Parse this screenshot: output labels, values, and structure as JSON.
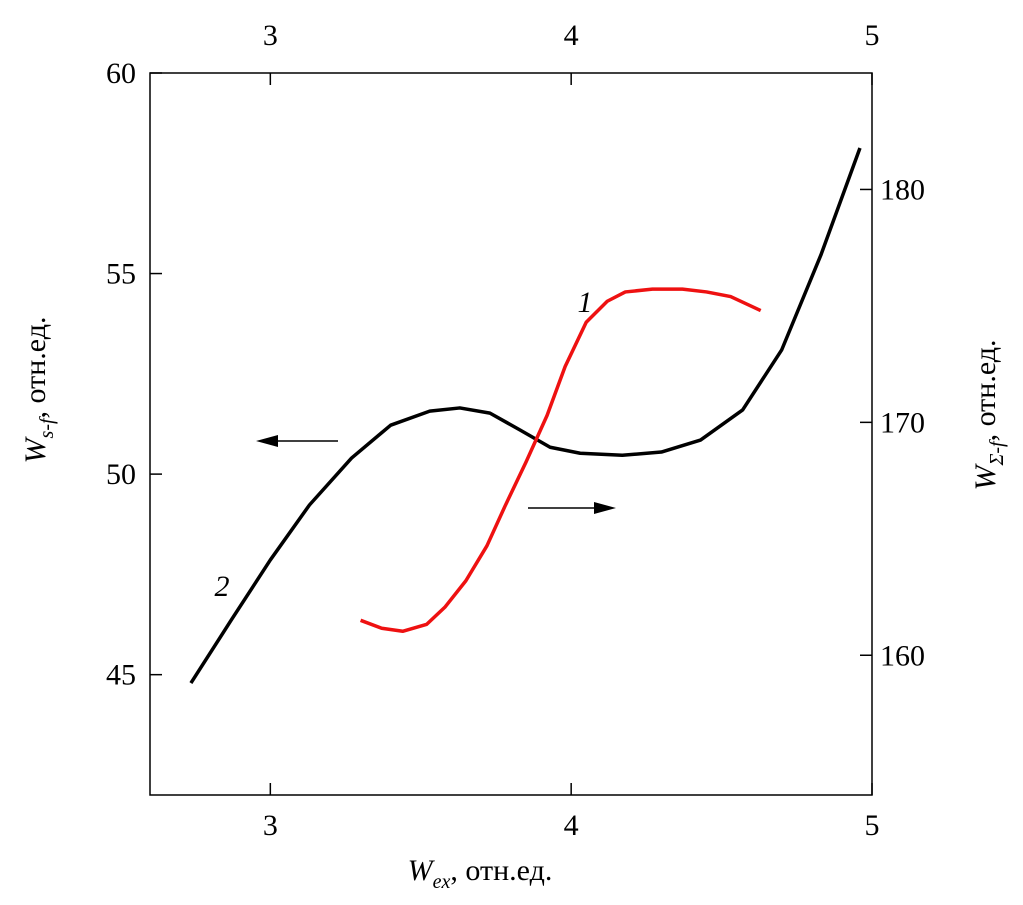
{
  "chart_data": {
    "type": "line",
    "x_label": {
      "main": "W",
      "sub": "ex",
      "rest": ", отн.ед."
    },
    "y_label": {
      "main": "W",
      "sub": "s-f",
      "rest": ", отн.ед."
    },
    "y2_label": {
      "main": "W",
      "sub": "Σ-f",
      "rest": ", отн.ед."
    },
    "xlim": [
      2.6,
      5
    ],
    "xticks": [
      3,
      4,
      5
    ],
    "ylim": [
      42,
      60
    ],
    "yticks": [
      45,
      50,
      55,
      60
    ],
    "y2lim": [
      154,
      185
    ],
    "y2ticks": [
      160,
      170,
      180
    ],
    "series": [
      {
        "name": "2",
        "color": "#000000",
        "x": [
          2.736,
          2.87,
          3.0,
          3.13,
          3.27,
          3.4,
          3.53,
          3.63,
          3.73,
          3.83,
          3.93,
          4.03,
          4.17,
          4.3,
          4.43,
          4.57,
          4.7,
          4.83,
          4.96
        ],
        "values": [
          44.79,
          46.36,
          47.86,
          49.23,
          50.4,
          51.22,
          51.57,
          51.65,
          51.52,
          51.1,
          50.67,
          50.52,
          50.47,
          50.55,
          50.85,
          51.6,
          53.1,
          55.46,
          58.13
        ]
      },
      {
        "name": "1",
        "color": "#ee1111",
        "axis": "y2",
        "x": [
          3.3,
          3.37,
          3.44,
          3.52,
          3.58,
          3.65,
          3.72,
          3.78,
          3.85,
          3.92,
          3.98,
          4.05,
          4.12,
          4.18,
          4.27,
          4.37,
          4.45,
          4.53,
          4.63
        ],
        "values": [
          161.5,
          161.16,
          161.03,
          161.33,
          162.06,
          163.2,
          164.7,
          166.4,
          168.3,
          170.3,
          172.4,
          174.3,
          175.2,
          175.6,
          175.72,
          175.72,
          175.6,
          175.4,
          174.8
        ]
      }
    ]
  }
}
